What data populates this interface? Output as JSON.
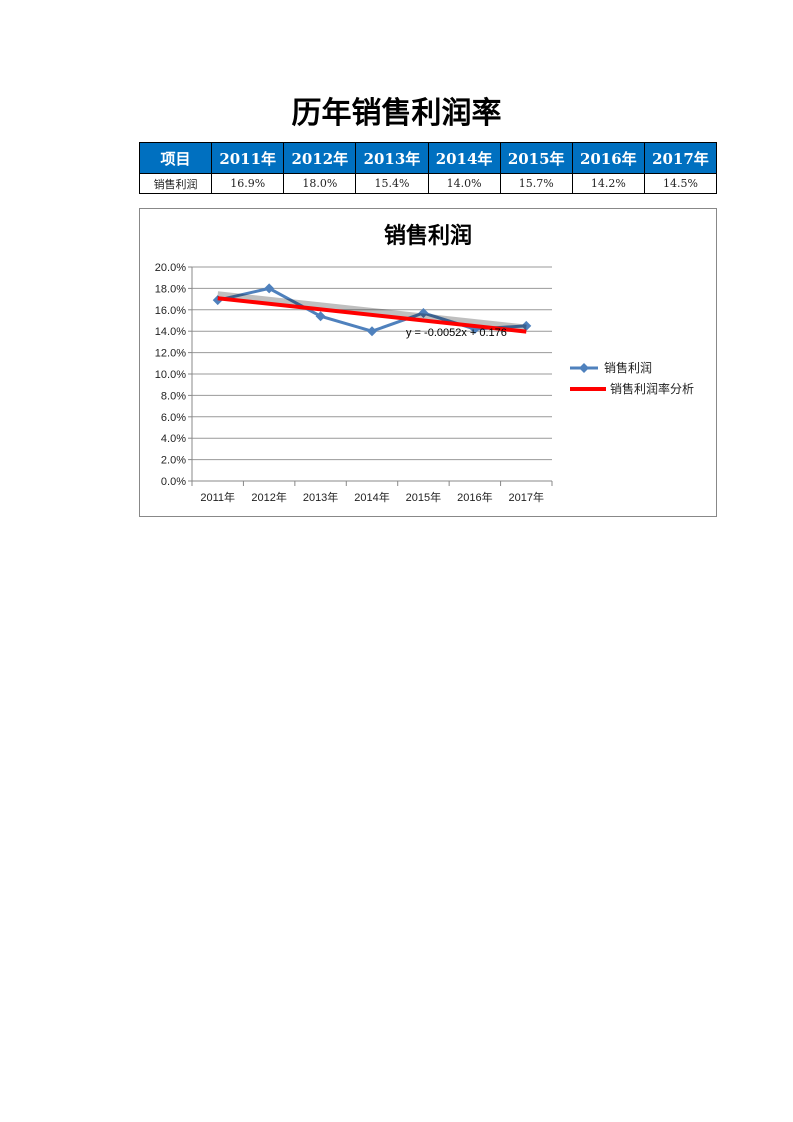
{
  "document_title": "历年销售利润率",
  "table": {
    "header": [
      "项目",
      "2011年",
      "2012年",
      "2013年",
      "2014年",
      "2015年",
      "2016年",
      "2017年"
    ],
    "rows": [
      [
        "销售利润",
        "16.9%",
        "18.0%",
        "15.4%",
        "14.0%",
        "15.7%",
        "14.2%",
        "14.5%"
      ]
    ],
    "header_color": "#0070C0"
  },
  "chart_data": {
    "type": "line",
    "title": "销售利润",
    "categories": [
      "2011年",
      "2012年",
      "2013年",
      "2014年",
      "2015年",
      "2016年",
      "2017年"
    ],
    "series": [
      {
        "name": "销售利润",
        "values": [
          0.169,
          0.18,
          0.154,
          0.14,
          0.157,
          0.142,
          0.145
        ],
        "color": "#4F81BD",
        "marker": "diamond"
      }
    ],
    "trendline": {
      "name": "销售利润率分析",
      "type": "linear",
      "slope": -0.0052,
      "intercept": 0.176,
      "equation": "y = -0.0052x + 0.176",
      "color": "#FF0000"
    },
    "ylim": [
      0,
      0.2
    ],
    "yticks": [
      "0.0%",
      "2.0%",
      "4.0%",
      "6.0%",
      "8.0%",
      "10.0%",
      "12.0%",
      "14.0%",
      "16.0%",
      "18.0%",
      "20.0%"
    ],
    "grid": true,
    "legend": "right"
  }
}
